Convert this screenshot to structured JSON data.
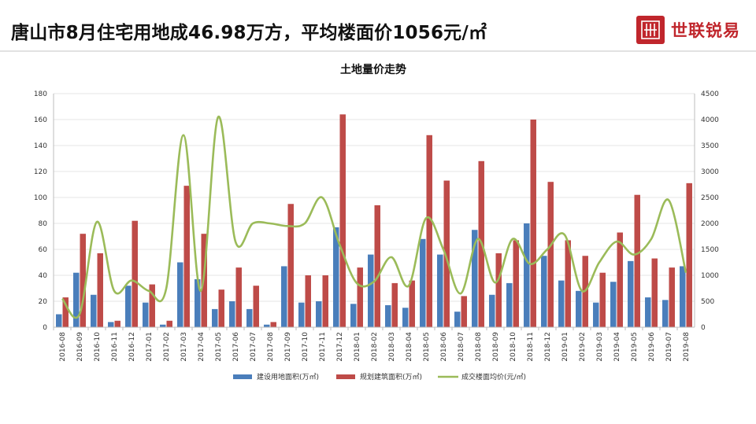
{
  "header": {
    "title": "唐山市8月住宅用地成46.98万方，平均楼面价1056元/㎡",
    "brand_name": "世联锐易"
  },
  "colors": {
    "bar1": "#4a7ebb",
    "bar2": "#be4b48",
    "line": "#9bbb59",
    "brand": "#c0262c"
  },
  "chart_data": {
    "type": "bar",
    "title": "土地量价走势",
    "categories": [
      "2016-08",
      "2016-09",
      "2016-10",
      "2016-11",
      "2016-12",
      "2017-01",
      "2017-02",
      "2017-03",
      "2017-04",
      "2017-05",
      "2017-06",
      "2017-07",
      "2017-08",
      "2017-09",
      "2017-10",
      "2017-11",
      "2017-12",
      "2018-01",
      "2018-02",
      "2018-03",
      "2018-04",
      "2018-05",
      "2018-06",
      "2018-07",
      "2018-08",
      "2018-09",
      "2018-10",
      "2018-11",
      "2018-12",
      "2019-01",
      "2019-02",
      "2019-03",
      "2019-04",
      "2019-05",
      "2019-06",
      "2019-07",
      "2019-08"
    ],
    "ylim_left": [
      0,
      180
    ],
    "ylim_right": [
      0,
      4500
    ],
    "yticks_left": [
      "0",
      "20",
      "40",
      "60",
      "80",
      "100",
      "120",
      "140",
      "160",
      "180"
    ],
    "yticks_right": [
      "0",
      "500",
      "1000",
      "1500",
      "2000",
      "2500",
      "3000",
      "3500",
      "4000",
      "4500"
    ],
    "series": [
      {
        "name": "建设用地面积(万㎡)",
        "kind": "bar",
        "axis": "left",
        "values": [
          10,
          42,
          25,
          4,
          32,
          19,
          2,
          50,
          37,
          14,
          20,
          14,
          2,
          47,
          19,
          20,
          77,
          18,
          56,
          17,
          15,
          68,
          56,
          12,
          75,
          25,
          34,
          80,
          55,
          36,
          28,
          19,
          35,
          51,
          23,
          21,
          47
        ]
      },
      {
        "name": "规划建筑面积(万㎡)",
        "kind": "bar",
        "axis": "left",
        "values": [
          23,
          72,
          57,
          5,
          82,
          33,
          5,
          109,
          72,
          29,
          46,
          32,
          4,
          95,
          40,
          40,
          164,
          46,
          94,
          34,
          36,
          148,
          113,
          24,
          128,
          57,
          67,
          160,
          112,
          67,
          55,
          42,
          73,
          102,
          53,
          46,
          111
        ]
      },
      {
        "name": "成交楼面均价(元/㎡)",
        "kind": "line",
        "axis": "right",
        "values": [
          550,
          250,
          2030,
          700,
          900,
          700,
          740,
          3700,
          700,
          4050,
          1650,
          2000,
          2000,
          1950,
          2000,
          2500,
          1600,
          850,
          880,
          1350,
          800,
          2100,
          1500,
          650,
          1700,
          860,
          1700,
          1220,
          1500,
          1780,
          700,
          1250,
          1650,
          1400,
          1700,
          2450,
          1050
        ]
      }
    ]
  }
}
